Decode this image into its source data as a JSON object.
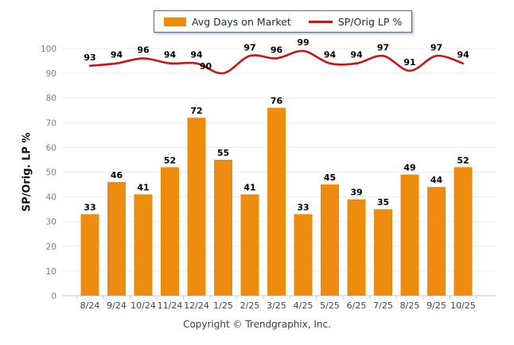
{
  "legend": {
    "bar_label": "Avg Days on Market",
    "line_label": "SP/Orig LP %"
  },
  "chart_data": {
    "type": "combo",
    "categories": [
      "8/24",
      "9/24",
      "10/24",
      "11/24",
      "12/24",
      "1/25",
      "2/25",
      "3/25",
      "4/25",
      "5/25",
      "6/25",
      "7/25",
      "8/25",
      "9/25",
      "10/25"
    ],
    "series": [
      {
        "name": "Avg Days on Market",
        "type": "bar",
        "color": "#ee8c0f",
        "values": [
          33,
          46,
          41,
          52,
          72,
          55,
          41,
          76,
          33,
          45,
          39,
          35,
          49,
          44,
          52
        ]
      },
      {
        "name": "SP/Orig LP %",
        "type": "line",
        "color": "#cc1414",
        "values": [
          93,
          94,
          96,
          94,
          94,
          90,
          97,
          96,
          99,
          94,
          94,
          97,
          91,
          97,
          94
        ],
        "label_offsets": {
          "5": [
            -22,
            2
          ]
        }
      }
    ],
    "title": "",
    "xlabel": "",
    "ylabel": "SP/Orig. LP %",
    "ylim": [
      0,
      100
    ],
    "ytick_labels": [
      "0",
      "10",
      "20",
      "30",
      "40",
      "50",
      "60",
      "70",
      "80",
      "90",
      "100"
    ],
    "grid": true,
    "legend_position": "top"
  },
  "colors": {
    "bar": "#ee8c0f",
    "line": "#cc1414",
    "grid": "#ededed",
    "axis": "#c8c8c8",
    "ytick_text": "#7e7e7e",
    "xtick_text": "#3a4656",
    "value_text": "#000000"
  },
  "footer": {
    "copyright": "Copyright © Trendgraphix, Inc."
  }
}
